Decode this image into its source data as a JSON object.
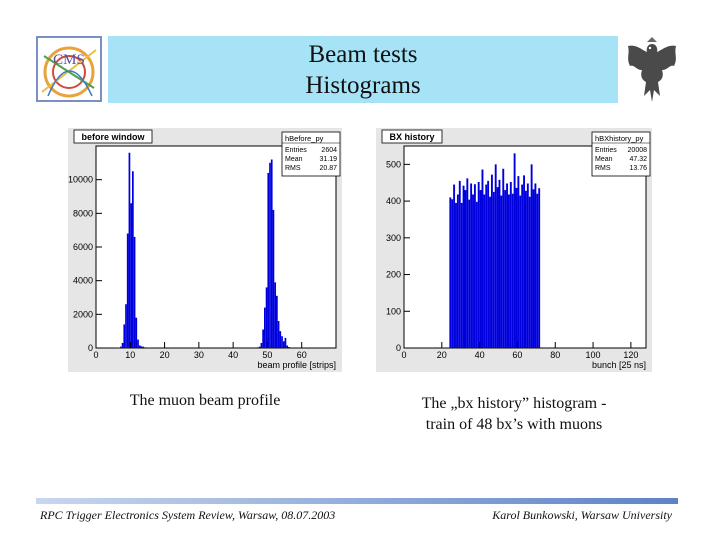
{
  "slide": {
    "title_line1": "Beam tests",
    "title_line2": "Histograms",
    "logo_left_text": "CMS",
    "caption_left": "The muon beam profile",
    "caption_right_line1": "The „bx history” histogram -",
    "caption_right_line2": "train of 48 bx’s with muons",
    "footer_left": "RPC Trigger Electronics System Review, Warsaw, 08.07.2003",
    "footer_right": "Karol Bunkowski, Warsaw University"
  },
  "colors": {
    "title_bg": "#a6e3f7",
    "histogram_fill": "#0000dd",
    "frame_bg": "#e6e6e6"
  },
  "chart_data": [
    {
      "type": "bar",
      "title": "before window",
      "stats_title": "hBefore_py",
      "stats": [
        {
          "label": "Entries",
          "value": "2604"
        },
        {
          "label": "Mean",
          "value": "31.19"
        },
        {
          "label": "RMS",
          "value": "20.87"
        }
      ],
      "xlabel": "beam profile [strips]",
      "xlim": [
        0,
        70
      ],
      "ylim": [
        0,
        12000
      ],
      "xticks": [
        0,
        10,
        20,
        30,
        40,
        50,
        60
      ],
      "yticks": [
        0,
        2000,
        4000,
        6000,
        8000,
        10000
      ],
      "bins": [
        [
          6,
          20
        ],
        [
          6.5,
          30
        ],
        [
          7,
          80
        ],
        [
          7.5,
          300
        ],
        [
          8,
          1400
        ],
        [
          8.5,
          2600
        ],
        [
          9,
          6800
        ],
        [
          9.5,
          11600
        ],
        [
          10,
          8600
        ],
        [
          10.5,
          10500
        ],
        [
          11,
          6600
        ],
        [
          11.5,
          1800
        ],
        [
          12,
          500
        ],
        [
          12.5,
          150
        ],
        [
          13,
          100
        ],
        [
          13.5,
          80
        ],
        [
          14,
          40
        ],
        [
          15,
          20
        ],
        [
          46,
          20
        ],
        [
          47,
          40
        ],
        [
          47.5,
          80
        ],
        [
          48,
          300
        ],
        [
          48.5,
          1100
        ],
        [
          49,
          2400
        ],
        [
          49.5,
          3600
        ],
        [
          50,
          10400
        ],
        [
          50.5,
          11000
        ],
        [
          51,
          11200
        ],
        [
          51.5,
          8200
        ],
        [
          52,
          3900
        ],
        [
          52.5,
          3100
        ],
        [
          53,
          1600
        ],
        [
          53.5,
          1000
        ],
        [
          54,
          700
        ],
        [
          54.5,
          400
        ],
        [
          55,
          600
        ],
        [
          55.5,
          150
        ],
        [
          56,
          60
        ]
      ]
    },
    {
      "type": "bar",
      "title": "BX history",
      "stats_title": "hBXhistory_py",
      "stats": [
        {
          "label": "Entries",
          "value": "20008"
        },
        {
          "label": "Mean",
          "value": "47.32"
        },
        {
          "label": "RMS",
          "value": "13.76"
        }
      ],
      "xlabel": "bunch [25 ns]",
      "xlim": [
        0,
        128
      ],
      "ylim": [
        0,
        550
      ],
      "xticks": [
        0,
        20,
        40,
        60,
        80,
        100,
        120
      ],
      "yticks": [
        0,
        100,
        200,
        300,
        400,
        500
      ],
      "bins": [
        [
          24,
          410
        ],
        [
          25,
          405
        ],
        [
          26,
          445
        ],
        [
          27,
          395
        ],
        [
          28,
          418
        ],
        [
          29,
          455
        ],
        [
          30,
          395
        ],
        [
          31,
          442
        ],
        [
          32,
          430
        ],
        [
          33,
          462
        ],
        [
          34,
          404
        ],
        [
          35,
          448
        ],
        [
          36,
          418
        ],
        [
          37,
          446
        ],
        [
          38,
          398
        ],
        [
          39,
          452
        ],
        [
          40,
          430
        ],
        [
          41,
          486
        ],
        [
          42,
          418
        ],
        [
          43,
          445
        ],
        [
          44,
          455
        ],
        [
          45,
          412
        ],
        [
          46,
          472
        ],
        [
          47,
          425
        ],
        [
          48,
          500
        ],
        [
          49,
          438
        ],
        [
          50,
          458
        ],
        [
          51,
          415
        ],
        [
          52,
          488
        ],
        [
          53,
          430
        ],
        [
          54,
          448
        ],
        [
          55,
          418
        ],
        [
          56,
          452
        ],
        [
          57,
          420
        ],
        [
          58,
          530
        ],
        [
          59,
          436
        ],
        [
          60,
          468
        ],
        [
          61,
          415
        ],
        [
          62,
          445
        ],
        [
          63,
          470
        ],
        [
          64,
          428
        ],
        [
          65,
          448
        ],
        [
          66,
          412
        ],
        [
          67,
          500
        ],
        [
          68,
          432
        ],
        [
          69,
          448
        ],
        [
          70,
          420
        ],
        [
          71,
          435
        ]
      ]
    }
  ]
}
